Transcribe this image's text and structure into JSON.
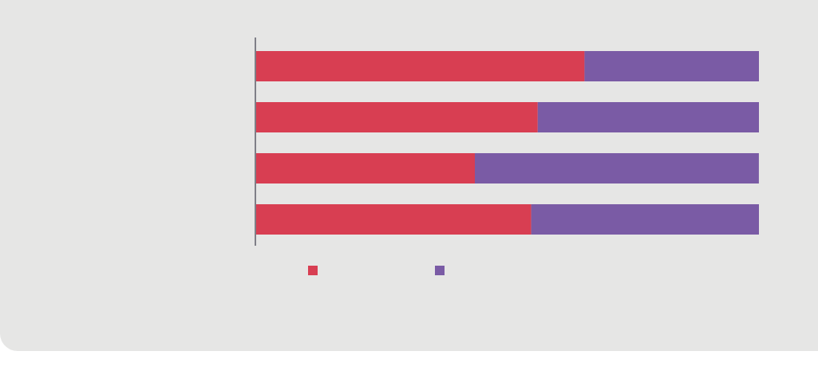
{
  "chart_data": {
    "type": "bar",
    "orientation": "horizontal",
    "stacked": true,
    "categories": [
      "",
      "",
      "",
      ""
    ],
    "series": [
      {
        "name": "",
        "color": "#d83e52",
        "values": [
          65.3,
          56.0,
          43.5,
          54.7
        ]
      },
      {
        "name": "",
        "color": "#7a5ba5",
        "values": [
          34.7,
          44.0,
          56.5,
          45.3
        ]
      }
    ],
    "xlim": [
      0,
      100
    ],
    "grid": false,
    "legend_position": "bottom-left",
    "title": "",
    "xlabel": "",
    "ylabel": ""
  }
}
